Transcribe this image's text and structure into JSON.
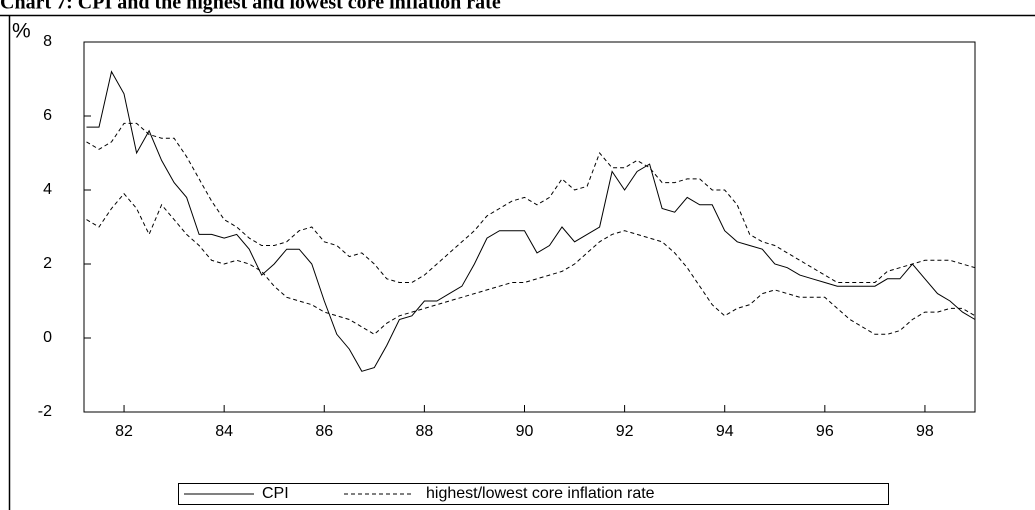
{
  "chart_data": {
    "type": "line",
    "title": "Chart 7: CPI and the highest and lowest core inflation rate",
    "y_label": "%",
    "xlim": [
      81.2,
      99
    ],
    "xticks": [
      82,
      84,
      86,
      88,
      90,
      92,
      94,
      96,
      98
    ],
    "ylim": [
      -2,
      8
    ],
    "yticks": [
      -2,
      0,
      2,
      4,
      6,
      8
    ],
    "x": [
      81.25,
      81.5,
      81.75,
      82,
      82.25,
      82.5,
      82.75,
      83,
      83.25,
      83.5,
      83.75,
      84,
      84.25,
      84.5,
      84.75,
      85,
      85.25,
      85.5,
      85.75,
      86,
      86.25,
      86.5,
      86.75,
      87,
      87.25,
      87.5,
      87.75,
      88,
      88.25,
      88.5,
      88.75,
      89,
      89.25,
      89.5,
      89.75,
      90,
      90.25,
      90.5,
      90.75,
      91,
      91.25,
      91.5,
      91.75,
      92,
      92.25,
      92.5,
      92.75,
      93,
      93.25,
      93.5,
      93.75,
      94,
      94.25,
      94.5,
      94.75,
      95,
      95.25,
      95.5,
      95.75,
      96,
      96.25,
      96.5,
      96.75,
      97,
      97.25,
      97.5,
      97.75,
      98,
      98.25,
      98.5,
      98.75,
      99
    ],
    "series": [
      {
        "name": "CPI",
        "color": "#000000",
        "dashed": false,
        "values": [
          5.7,
          5.7,
          7.2,
          6.6,
          5.0,
          5.6,
          4.8,
          4.2,
          3.8,
          2.8,
          2.8,
          2.7,
          2.8,
          2.4,
          1.7,
          2.0,
          2.4,
          2.4,
          2.0,
          1.0,
          0.1,
          -0.3,
          -0.9,
          -0.8,
          -0.2,
          0.5,
          0.6,
          1.0,
          1.0,
          1.2,
          1.4,
          2.0,
          2.7,
          2.9,
          2.9,
          2.9,
          2.3,
          2.5,
          3.0,
          2.6,
          2.8,
          3.0,
          4.5,
          4.0,
          4.5,
          4.7,
          3.5,
          3.4,
          3.8,
          3.6,
          3.6,
          2.9,
          2.6,
          2.5,
          2.4,
          2.0,
          1.9,
          1.7,
          1.6,
          1.5,
          1.4,
          1.4,
          1.4,
          1.4,
          1.6,
          1.6,
          2.0,
          1.6,
          1.2,
          1.0,
          0.7,
          0.5
        ]
      },
      {
        "name": "highest/lowest core inflation rate",
        "color": "#000000",
        "dashed": true,
        "high": [
          5.3,
          5.1,
          5.3,
          5.8,
          5.8,
          5.5,
          5.4,
          5.4,
          4.9,
          4.3,
          3.7,
          3.2,
          3.0,
          2.7,
          2.5,
          2.5,
          2.6,
          2.9,
          3.0,
          2.6,
          2.5,
          2.2,
          2.3,
          2.0,
          1.6,
          1.5,
          1.5,
          1.7,
          2.0,
          2.3,
          2.6,
          2.9,
          3.3,
          3.5,
          3.7,
          3.8,
          3.6,
          3.8,
          4.3,
          4.0,
          4.1,
          5.0,
          4.6,
          4.6,
          4.8,
          4.6,
          4.2,
          4.2,
          4.3,
          4.3,
          4.0,
          4.0,
          3.6,
          2.8,
          2.6,
          2.5,
          2.3,
          2.1,
          1.9,
          1.7,
          1.5,
          1.5,
          1.5,
          1.5,
          1.8,
          1.9,
          2.0,
          2.1,
          2.1,
          2.1,
          2.0,
          1.9
        ],
        "low": [
          3.2,
          3.0,
          3.5,
          3.9,
          3.5,
          2.8,
          3.6,
          3.2,
          2.8,
          2.5,
          2.1,
          2.0,
          2.1,
          2.0,
          1.8,
          1.4,
          1.1,
          1.0,
          0.9,
          0.7,
          0.6,
          0.5,
          0.3,
          0.1,
          0.4,
          0.6,
          0.7,
          0.8,
          0.9,
          1.0,
          1.1,
          1.2,
          1.3,
          1.4,
          1.5,
          1.5,
          1.6,
          1.7,
          1.8,
          2.0,
          2.3,
          2.6,
          2.8,
          2.9,
          2.8,
          2.7,
          2.6,
          2.3,
          1.9,
          1.4,
          0.9,
          0.6,
          0.8,
          0.9,
          1.2,
          1.3,
          1.2,
          1.1,
          1.1,
          1.1,
          0.8,
          0.5,
          0.3,
          0.1,
          0.1,
          0.2,
          0.5,
          0.7,
          0.7,
          0.8,
          0.8,
          0.6
        ]
      }
    ]
  }
}
